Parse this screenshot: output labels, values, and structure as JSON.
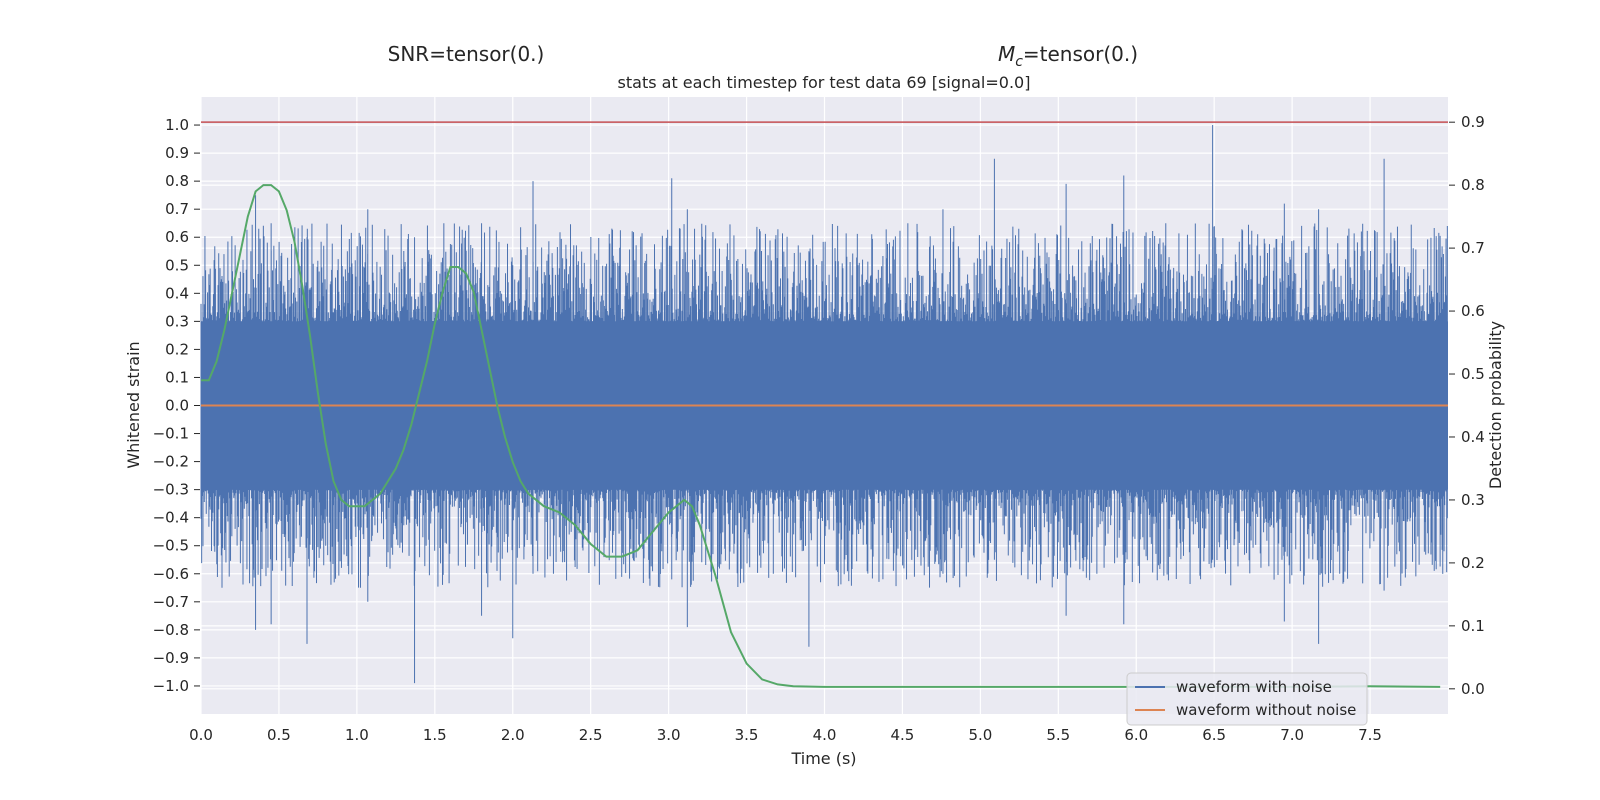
{
  "chart_data": {
    "type": "line",
    "header_left": "SNR=tensor(0.)",
    "header_right_symbol": "M",
    "header_right_sub": "c",
    "header_right_rest": "=tensor(0.)",
    "title": "stats at each timestep for test data 69 [signal=0.0]",
    "xlabel": "Time (s)",
    "ylabel": "Whitened strain",
    "y2label": "Detection probability",
    "xlim": [
      0,
      8
    ],
    "ylim": [
      -1.1,
      1.1
    ],
    "y2lim": [
      -0.04,
      0.94
    ],
    "xticks": [
      "0.0",
      "0.5",
      "1.0",
      "1.5",
      "2.0",
      "2.5",
      "3.0",
      "3.5",
      "4.0",
      "4.5",
      "5.0",
      "5.5",
      "6.0",
      "6.5",
      "7.0",
      "7.5"
    ],
    "yticks": [
      "1.0",
      "0.9",
      "0.8",
      "0.7",
      "0.6",
      "0.5",
      "0.4",
      "0.3",
      "0.2",
      "0.1",
      "0.0",
      "−0.1",
      "−0.2",
      "−0.3",
      "−0.4",
      "−0.5",
      "−0.6",
      "−0.7",
      "−0.8",
      "−0.9",
      "−1.0"
    ],
    "y2ticks": [
      "0.9",
      "0.8",
      "0.7",
      "0.6",
      "0.5",
      "0.4",
      "0.3",
      "0.2",
      "0.1",
      "0.0"
    ],
    "grid": true,
    "legend_position": "bottom-right",
    "threshold": {
      "y2": 0.9,
      "color": "#c44e52"
    },
    "series": [
      {
        "name": "waveform with noise",
        "color": "#4c72b0",
        "axis": "left",
        "envelope_spikes": [
          [
            0.35,
            0.75,
            -0.8
          ],
          [
            0.45,
            0.65,
            -0.78
          ],
          [
            0.68,
            0.6,
            -0.85
          ],
          [
            1.07,
            0.7,
            -0.7
          ],
          [
            1.37,
            0.6,
            -0.99
          ],
          [
            1.8,
            0.65,
            -0.75
          ],
          [
            2.0,
            0.5,
            -0.83
          ],
          [
            2.13,
            0.8,
            -0.6
          ],
          [
            3.02,
            0.81,
            -0.62
          ],
          [
            3.12,
            0.7,
            -0.79
          ],
          [
            3.9,
            0.55,
            -0.86
          ],
          [
            4.76,
            0.7,
            -0.6
          ],
          [
            5.09,
            0.88,
            -0.55
          ],
          [
            5.55,
            0.79,
            -0.75
          ],
          [
            5.92,
            0.82,
            -0.78
          ],
          [
            6.49,
            1.0,
            -0.55
          ],
          [
            6.95,
            0.72,
            -0.77
          ],
          [
            7.17,
            0.7,
            -0.85
          ],
          [
            7.59,
            0.88,
            -0.66
          ]
        ]
      },
      {
        "name": "waveform without noise",
        "color": "#dd8452",
        "axis": "left",
        "value": 0.0
      },
      {
        "name": "detection probability",
        "color": "#55a868",
        "axis": "right",
        "x": [
          0.0,
          0.05,
          0.1,
          0.15,
          0.2,
          0.25,
          0.3,
          0.35,
          0.4,
          0.45,
          0.5,
          0.55,
          0.6,
          0.65,
          0.7,
          0.75,
          0.8,
          0.85,
          0.9,
          0.95,
          1.0,
          1.05,
          1.1,
          1.15,
          1.2,
          1.25,
          1.3,
          1.35,
          1.4,
          1.45,
          1.5,
          1.55,
          1.6,
          1.65,
          1.7,
          1.75,
          1.8,
          1.85,
          1.9,
          1.95,
          2.0,
          2.05,
          2.1,
          2.2,
          2.3,
          2.4,
          2.5,
          2.6,
          2.7,
          2.8,
          2.9,
          3.0,
          3.05,
          3.1,
          3.15,
          3.2,
          3.3,
          3.4,
          3.5,
          3.6,
          3.7,
          3.8,
          4.0,
          4.5,
          5.0,
          5.5,
          6.0,
          6.5,
          7.0,
          7.5,
          7.95
        ],
        "y": [
          0.49,
          0.49,
          0.52,
          0.57,
          0.63,
          0.69,
          0.75,
          0.79,
          0.8,
          0.8,
          0.79,
          0.76,
          0.71,
          0.64,
          0.56,
          0.47,
          0.39,
          0.33,
          0.3,
          0.29,
          0.29,
          0.29,
          0.3,
          0.31,
          0.33,
          0.35,
          0.38,
          0.42,
          0.47,
          0.52,
          0.58,
          0.63,
          0.67,
          0.67,
          0.66,
          0.63,
          0.57,
          0.51,
          0.45,
          0.4,
          0.36,
          0.33,
          0.31,
          0.29,
          0.28,
          0.26,
          0.23,
          0.21,
          0.21,
          0.22,
          0.25,
          0.28,
          0.29,
          0.3,
          0.29,
          0.26,
          0.18,
          0.09,
          0.04,
          0.015,
          0.007,
          0.004,
          0.003,
          0.003,
          0.003,
          0.003,
          0.003,
          0.003,
          0.003,
          0.004,
          0.003
        ]
      }
    ]
  }
}
